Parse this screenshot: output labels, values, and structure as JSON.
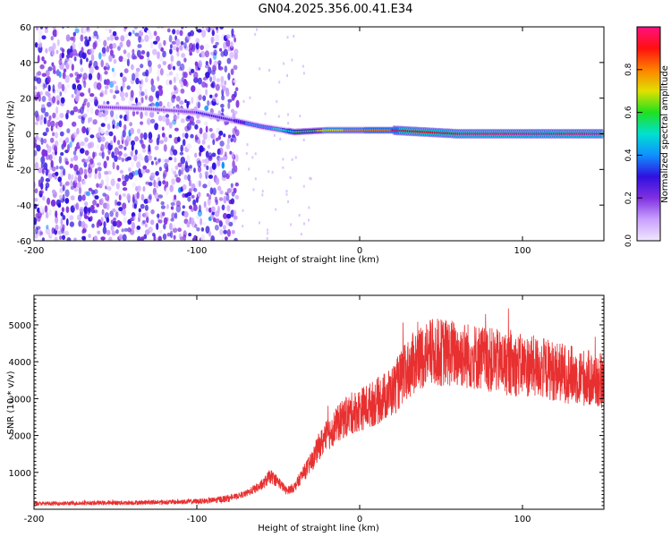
{
  "title": "GN04.2025.356.00.41.E34",
  "colors": {
    "snr_line": "#e83030",
    "frame": "#000000",
    "colormap_stops": [
      "#f0e8ff",
      "#c9a0ff",
      "#8030e0",
      "#3010e0",
      "#1090ff",
      "#00e0d0",
      "#20e020",
      "#e0e000",
      "#ff8000",
      "#ff1010",
      "#ff1080"
    ]
  },
  "chart_data": [
    {
      "type": "heatmap",
      "name": "spectrogram",
      "title": "GN04.2025.356.00.41.E34",
      "xlabel": "Height of straight line (km)",
      "ylabel": "Frequency (Hz)",
      "xlim": [
        -200,
        150
      ],
      "ylim": [
        -60,
        60
      ],
      "xticks": [
        -200,
        -100,
        0,
        100
      ],
      "yticks": [
        60,
        40,
        20,
        0,
        -20,
        -40,
        -60
      ],
      "colorbar": {
        "label": "Normalized spectral amplitude",
        "range": [
          0,
          1
        ],
        "ticks": [
          0.0,
          0.2,
          0.4,
          0.6,
          0.8
        ]
      },
      "features": {
        "noise_region_x": [
          -200,
          -75
        ],
        "noise_level": 0.15,
        "track": [
          {
            "x": -160,
            "f": 15,
            "a": 0.25
          },
          {
            "x": -130,
            "f": 14,
            "a": 0.25
          },
          {
            "x": -100,
            "f": 12,
            "a": 0.3
          },
          {
            "x": -80,
            "f": 8,
            "a": 0.35
          },
          {
            "x": -60,
            "f": 4,
            "a": 0.45
          },
          {
            "x": -40,
            "f": 1,
            "a": 0.6
          },
          {
            "x": -20,
            "f": 2,
            "a": 0.75
          },
          {
            "x": 0,
            "f": 2,
            "a": 0.85
          },
          {
            "x": 20,
            "f": 2,
            "a": 0.9
          },
          {
            "x": 40,
            "f": 1,
            "a": 0.95
          },
          {
            "x": 60,
            "f": 0,
            "a": 1.0
          },
          {
            "x": 100,
            "f": 0,
            "a": 1.0
          },
          {
            "x": 150,
            "f": 0,
            "a": 1.0
          }
        ]
      }
    },
    {
      "type": "line",
      "name": "snr",
      "xlabel": "Height of straight line (km)",
      "ylabel": "SNR (10 * v/v)",
      "xlim": [
        -200,
        150
      ],
      "ylim": [
        0,
        5800
      ],
      "xticks": [
        -200,
        -100,
        0,
        100
      ],
      "yticks": [
        1000,
        2000,
        3000,
        4000,
        5000
      ],
      "series": [
        {
          "name": "SNR",
          "x": [
            -200,
            -180,
            -160,
            -140,
            -120,
            -100,
            -90,
            -80,
            -70,
            -60,
            -55,
            -50,
            -45,
            -40,
            -35,
            -30,
            -25,
            -20,
            -15,
            -10,
            -5,
            0,
            5,
            10,
            15,
            20,
            25,
            30,
            35,
            40,
            45,
            50,
            55,
            60,
            70,
            80,
            90,
            100,
            110,
            120,
            130,
            140,
            150
          ],
          "values": [
            150,
            160,
            170,
            180,
            190,
            210,
            240,
            300,
            420,
            650,
            900,
            750,
            500,
            600,
            950,
            1250,
            1700,
            2000,
            2250,
            2450,
            2600,
            2700,
            2800,
            2900,
            3050,
            3200,
            3500,
            3800,
            4050,
            4200,
            4250,
            4250,
            4250,
            4200,
            4150,
            4050,
            3950,
            3900,
            3850,
            3750,
            3650,
            3550,
            3450
          ]
        }
      ]
    }
  ]
}
